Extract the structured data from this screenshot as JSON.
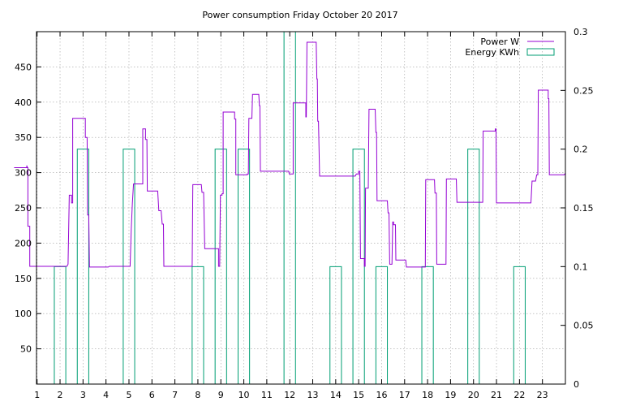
{
  "chart_data": {
    "type": "line",
    "title": "Power consumption Friday October 20 2017",
    "xlim": [
      0,
      24
    ],
    "x_ticks": [
      1,
      2,
      3,
      4,
      5,
      6,
      7,
      8,
      9,
      10,
      11,
      12,
      13,
      14,
      15,
      16,
      17,
      18,
      19,
      20,
      21,
      22,
      23
    ],
    "y_left": {
      "lim": [
        0,
        500
      ],
      "ticks": [
        50,
        100,
        150,
        200,
        250,
        300,
        350,
        400,
        450
      ]
    },
    "y_right": {
      "lim": [
        0,
        0.3
      ],
      "ticks": [
        0,
        0.05,
        0.1,
        0.15,
        0.2,
        0.25,
        0.3
      ],
      "tick_labels": [
        "0",
        "0.05",
        "0.1",
        "0.15",
        "0.2",
        "0.25",
        "0.3"
      ]
    },
    "grid": true,
    "legend_position": "top-right",
    "series": [
      {
        "name": "Power W",
        "axis": "left",
        "color": "#9400d3",
        "kind": "step",
        "points": [
          [
            0,
            307
          ],
          [
            0.55,
            307
          ],
          [
            0.55,
            310
          ],
          [
            0.58,
            307
          ],
          [
            0.6,
            307
          ],
          [
            0.6,
            224
          ],
          [
            0.68,
            224
          ],
          [
            0.68,
            167
          ],
          [
            2.3,
            167
          ],
          [
            2.35,
            170
          ],
          [
            2.4,
            268
          ],
          [
            2.5,
            268
          ],
          [
            2.5,
            257
          ],
          [
            2.55,
            257
          ],
          [
            2.55,
            377
          ],
          [
            3.1,
            377
          ],
          [
            3.1,
            350
          ],
          [
            3.18,
            350
          ],
          [
            3.2,
            240
          ],
          [
            3.25,
            240
          ],
          [
            3.28,
            166
          ],
          [
            4.1,
            166
          ],
          [
            4.15,
            167
          ],
          [
            5.05,
            167
          ],
          [
            5.1,
            220
          ],
          [
            5.15,
            257
          ],
          [
            5.2,
            284
          ],
          [
            5.6,
            284
          ],
          [
            5.6,
            362
          ],
          [
            5.72,
            362
          ],
          [
            5.72,
            347
          ],
          [
            5.78,
            347
          ],
          [
            5.8,
            274
          ],
          [
            6.25,
            274
          ],
          [
            6.3,
            246
          ],
          [
            6.4,
            246
          ],
          [
            6.45,
            227
          ],
          [
            6.5,
            227
          ],
          [
            6.52,
            167
          ],
          [
            7.75,
            167
          ],
          [
            7.78,
            283
          ],
          [
            8.15,
            283
          ],
          [
            8.18,
            272
          ],
          [
            8.25,
            272
          ],
          [
            8.3,
            192
          ],
          [
            8.9,
            192
          ],
          [
            8.9,
            167
          ],
          [
            8.95,
            167
          ],
          [
            8.98,
            268
          ],
          [
            9.05,
            268
          ],
          [
            9.05,
            270
          ],
          [
            9.1,
            270
          ],
          [
            9.1,
            386
          ],
          [
            9.6,
            386
          ],
          [
            9.6,
            376
          ],
          [
            9.65,
            376
          ],
          [
            9.65,
            297
          ],
          [
            10.15,
            297
          ],
          [
            10.15,
            298
          ],
          [
            10.2,
            298
          ],
          [
            10.22,
            377
          ],
          [
            10.35,
            377
          ],
          [
            10.38,
            411
          ],
          [
            10.65,
            411
          ],
          [
            10.68,
            395
          ],
          [
            10.7,
            395
          ],
          [
            10.72,
            302
          ],
          [
            11.95,
            302
          ],
          [
            11.98,
            298
          ],
          [
            12.15,
            298
          ],
          [
            12.15,
            399
          ],
          [
            12.7,
            399
          ],
          [
            12.7,
            379
          ],
          [
            12.72,
            379
          ],
          [
            12.75,
            485
          ],
          [
            13.15,
            485
          ],
          [
            13.18,
            433
          ],
          [
            13.2,
            433
          ],
          [
            13.22,
            373
          ],
          [
            13.25,
            373
          ],
          [
            13.3,
            295
          ],
          [
            14.85,
            295
          ],
          [
            14.9,
            298
          ],
          [
            15,
            298
          ],
          [
            15,
            302
          ],
          [
            15.05,
            302
          ],
          [
            15.08,
            178
          ],
          [
            15.25,
            178
          ],
          [
            15.25,
            167
          ],
          [
            15.28,
            167
          ],
          [
            15.3,
            278
          ],
          [
            15.42,
            278
          ],
          [
            15.45,
            390
          ],
          [
            15.72,
            390
          ],
          [
            15.75,
            357
          ],
          [
            15.78,
            357
          ],
          [
            15.8,
            260
          ],
          [
            16.25,
            260
          ],
          [
            16.28,
            243
          ],
          [
            16.32,
            243
          ],
          [
            16.35,
            170
          ],
          [
            16.45,
            170
          ],
          [
            16.48,
            230
          ],
          [
            16.52,
            230
          ],
          [
            16.52,
            226
          ],
          [
            16.6,
            226
          ],
          [
            16.62,
            176
          ],
          [
            17.05,
            176
          ],
          [
            17.08,
            166
          ],
          [
            17.9,
            166
          ],
          [
            17.92,
            290
          ],
          [
            18.3,
            290
          ],
          [
            18.32,
            271
          ],
          [
            18.38,
            271
          ],
          [
            18.4,
            170
          ],
          [
            18.8,
            170
          ],
          [
            18.82,
            291
          ],
          [
            19.25,
            291
          ],
          [
            19.28,
            258
          ],
          [
            20.4,
            258
          ],
          [
            20.42,
            359
          ],
          [
            20.95,
            359
          ],
          [
            20.95,
            362
          ],
          [
            20.98,
            362
          ],
          [
            21,
            257
          ],
          [
            22.5,
            257
          ],
          [
            22.55,
            288
          ],
          [
            22.7,
            288
          ],
          [
            22.75,
            297
          ],
          [
            22.8,
            297
          ],
          [
            22.82,
            417
          ],
          [
            23.25,
            417
          ],
          [
            23.25,
            405
          ],
          [
            23.28,
            405
          ],
          [
            23.3,
            297
          ],
          [
            23.95,
            297
          ],
          [
            24,
            299
          ]
        ]
      },
      {
        "name": "Energy KWh",
        "axis": "right",
        "color": "#009e73",
        "kind": "boxes",
        "bars": [
          {
            "x": 2,
            "value": 0.1
          },
          {
            "x": 3,
            "value": 0.2
          },
          {
            "x": 5,
            "value": 0.2
          },
          {
            "x": 8,
            "value": 0.1
          },
          {
            "x": 9,
            "value": 0.2
          },
          {
            "x": 10,
            "value": 0.2
          },
          {
            "x": 12,
            "value": 0.3
          },
          {
            "x": 14,
            "value": 0.1
          },
          {
            "x": 15,
            "value": 0.2
          },
          {
            "x": 16,
            "value": 0.1
          },
          {
            "x": 18,
            "value": 0.1
          },
          {
            "x": 20,
            "value": 0.2
          },
          {
            "x": 22,
            "value": 0.1
          }
        ]
      }
    ]
  }
}
